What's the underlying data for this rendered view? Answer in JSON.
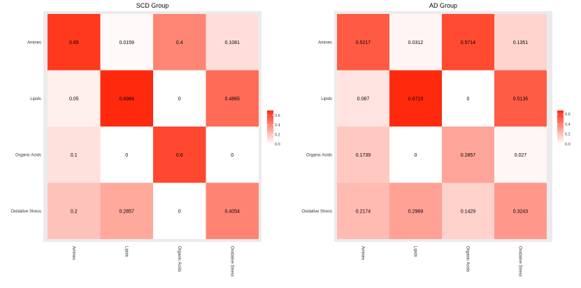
{
  "colors": {
    "low": "#ffffff",
    "high": "#ff2a0d",
    "panel_bg": "#ebebeb"
  },
  "chart_data": [
    {
      "type": "heatmap",
      "title": "SCD Group",
      "rows": [
        "Amines",
        "Lipids",
        "Organic Acids",
        "Oxidative Stress"
      ],
      "columns": [
        "Amines",
        "Lipids",
        "Organic Acids",
        "Oxidative Stress"
      ],
      "values": [
        [
          0.65,
          0.0159,
          0.4,
          0.1081
        ],
        [
          0.05,
          0.6984,
          0,
          0.4865
        ],
        [
          0.1,
          0,
          0.6,
          0
        ],
        [
          0.2,
          0.2857,
          0,
          0.4054
        ]
      ],
      "labels": [
        [
          "0.65",
          "0.0159",
          "0.4",
          "0.1081"
        ],
        [
          "0.05",
          "0.6984",
          "0",
          "0.4865"
        ],
        [
          "0.1",
          "0",
          "0.6",
          "0"
        ],
        [
          "0.2",
          "0.2857",
          "0",
          "0.4054"
        ]
      ],
      "legend": {
        "ticks": [
          "0.6",
          "0.4",
          "0.2",
          "0.0"
        ],
        "tick_values": [
          0.6,
          0.4,
          0.2,
          0.0
        ],
        "range": [
          0,
          0.6984
        ],
        "position": "right"
      }
    },
    {
      "type": "heatmap",
      "title": "AD Group",
      "rows": [
        "Amines",
        "Lipids",
        "Organic Acids",
        "Oxidative Stress"
      ],
      "columns": [
        "Amines",
        "Lipids",
        "Organic Acids",
        "Oxidative Stress"
      ],
      "values": [
        [
          0.5217,
          0.0312,
          0.5714,
          0.1351
        ],
        [
          0.087,
          0.6719,
          0,
          0.5135
        ],
        [
          0.1739,
          0,
          0.2857,
          0.027
        ],
        [
          0.2174,
          0.2969,
          0.1429,
          0.3243
        ]
      ],
      "labels": [
        [
          "0.5217",
          "0.0312",
          "0.5714",
          "0.1351"
        ],
        [
          "0.087",
          "0.6719",
          "0",
          "0.5135"
        ],
        [
          "0.1739",
          "0",
          "0.2857",
          "0.027"
        ],
        [
          "0.2174",
          "0.2969",
          "0.1429",
          "0.3243"
        ]
      ],
      "legend": {
        "ticks": [
          "0.6",
          "0.4",
          "0.2",
          "0.0"
        ],
        "tick_values": [
          0.6,
          0.4,
          0.2,
          0.0
        ],
        "range": [
          0,
          0.6719
        ],
        "position": "right"
      }
    }
  ]
}
